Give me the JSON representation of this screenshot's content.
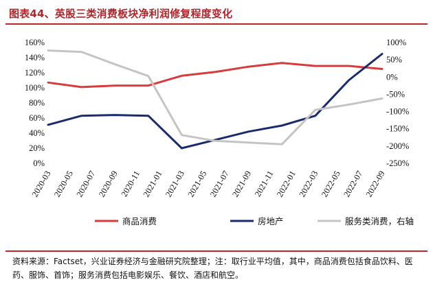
{
  "header": {
    "title": "图表44、英股三类消费板块净利润修复程度变化"
  },
  "footer": {
    "note": "资料来源：Factset，兴业证券经济与金融研究院整理；注：取行业平均值，其中，商品消费包括食品饮料、医药、服饰、首饰；服务消费包括电影娱乐、餐饮、酒店和航空。"
  },
  "chart_data": {
    "type": "line",
    "title": "图表44、英股三类消费板块净利润修复程度变化",
    "x": [
      "2020-03",
      "2020-05",
      "2020-07",
      "2020-09",
      "2020-11",
      "2021-01",
      "2021-03",
      "2021-05",
      "2021-07",
      "2021-09",
      "2021-11",
      "2022-01",
      "2022-03",
      "2022-05",
      "2022-07",
      "2022-09"
    ],
    "left_axis": {
      "ylim": [
        0,
        1.6
      ],
      "ticks": [
        "0%",
        "20%",
        "40%",
        "60%",
        "80%",
        "100%",
        "120%",
        "140%",
        "160%"
      ]
    },
    "right_axis": {
      "ylim": [
        -250,
        100
      ],
      "ticks": [
        "-250%",
        "-200%",
        "-150%",
        "-100%",
        "-50%",
        "0%",
        "50%",
        "100%"
      ]
    },
    "series": [
      {
        "name": "商品消费",
        "axis": "left",
        "color": "#d93a3a",
        "points": [
          [
            "2020-03",
            1.07
          ],
          [
            "2020-06",
            1.01
          ],
          [
            "2020-09",
            1.03
          ],
          [
            "2020-12",
            1.03
          ],
          [
            "2021-03",
            1.16
          ],
          [
            "2021-06",
            1.21
          ],
          [
            "2021-09",
            1.28
          ],
          [
            "2021-12",
            1.33
          ],
          [
            "2022-03",
            1.29
          ],
          [
            "2022-06",
            1.29
          ],
          [
            "2022-09",
            1.25
          ]
        ]
      },
      {
        "name": "房地产",
        "axis": "left",
        "color": "#1a2b6d",
        "points": [
          [
            "2020-03",
            0.51
          ],
          [
            "2020-06",
            0.63
          ],
          [
            "2020-09",
            0.64
          ],
          [
            "2020-12",
            0.63
          ],
          [
            "2021-03",
            0.2
          ],
          [
            "2021-06",
            0.31
          ],
          [
            "2021-09",
            0.42
          ],
          [
            "2021-12",
            0.5
          ],
          [
            "2022-03",
            0.63
          ],
          [
            "2022-06",
            1.1
          ],
          [
            "2022-09",
            1.45
          ]
        ]
      },
      {
        "name": "服务类消费，右轴",
        "axis": "right",
        "color": "#c4c4c4",
        "points": [
          [
            "2020-03",
            77
          ],
          [
            "2020-06",
            73
          ],
          [
            "2020-09",
            37
          ],
          [
            "2020-12",
            3
          ],
          [
            "2021-03",
            -168
          ],
          [
            "2021-06",
            -185
          ],
          [
            "2021-09",
            -190
          ],
          [
            "2021-12",
            -195
          ],
          [
            "2022-03",
            -95
          ],
          [
            "2022-06",
            -80
          ],
          [
            "2022-09",
            -62
          ]
        ]
      }
    ],
    "grid": false,
    "legend_position": "bottom"
  }
}
